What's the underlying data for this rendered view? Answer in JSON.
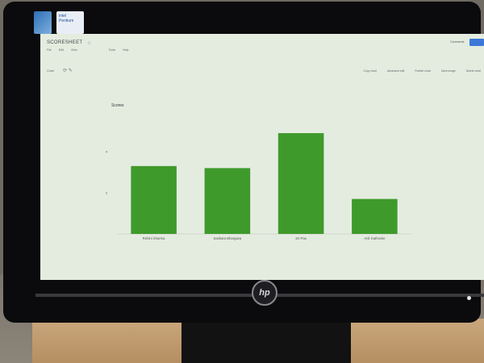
{
  "app": {
    "doc_title": "SCORESHEET",
    "menu": [
      "File",
      "Edit",
      "View",
      "Tools",
      "Help"
    ],
    "comments_label": "Comments",
    "toolbar_left": "Chart",
    "toolbar_right": [
      "Copy chart",
      "Advanced edit",
      "Publish chart",
      "Save image",
      "Delete chart"
    ]
  },
  "monitor": {
    "brand": "hp"
  },
  "stickers": {
    "intel": "intel Pentium"
  },
  "colors": {
    "bar": "#3f9a2c",
    "screen": "#e4ece0",
    "bezel": "#0b0b0d"
  },
  "chart_data": {
    "type": "bar",
    "title": "Scores",
    "categories": [
      "Rohini Sharma",
      "Sankara Bhargava",
      "Sri Pau",
      "Anil Gathovke"
    ],
    "values": [
      3.3,
      3.2,
      4.9,
      1.7
    ],
    "ylim": [
      0,
      6
    ],
    "yticks": [
      4,
      2
    ],
    "grid": false,
    "legend": "none"
  }
}
